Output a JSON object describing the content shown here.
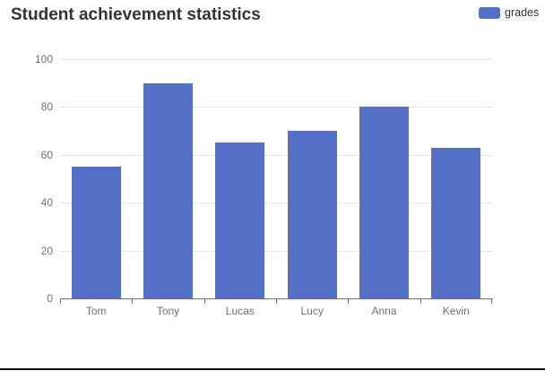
{
  "title": {
    "text": "Student achievement statistics"
  },
  "legend": {
    "label": "grades",
    "position": "top-right"
  },
  "colors": {
    "bar": "#5470C6",
    "grid": "#E0E6F1",
    "axis_line": "#6E7079",
    "axis_label": "#6E7079",
    "title_text": "#333333",
    "legend_text": "#333333",
    "window_border": "#111111",
    "background": "#FFFFFF"
  },
  "chart_data": {
    "type": "bar",
    "title": "Student achievement statistics",
    "categories": [
      "Tom",
      "Tony",
      "Lucas",
      "Lucy",
      "Anna",
      "Kevin"
    ],
    "series": [
      {
        "name": "grades",
        "values": [
          55,
          90,
          65,
          70,
          80,
          63
        ]
      }
    ],
    "xlabel": "",
    "ylabel": "",
    "ylim": [
      0,
      100
    ],
    "yticks": [
      0,
      20,
      40,
      60,
      80,
      100
    ],
    "grid": true,
    "legend_position": "top-right"
  }
}
